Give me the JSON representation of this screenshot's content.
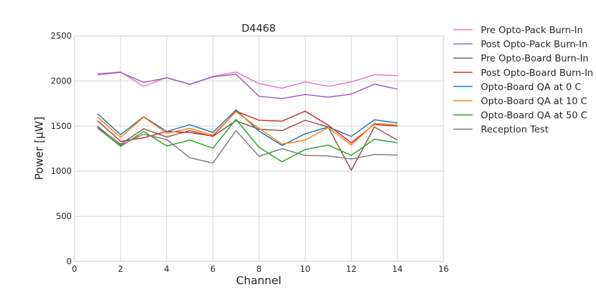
{
  "chart_data": {
    "type": "line",
    "title": "D4468",
    "xlabel": "Channel",
    "ylabel": "Power [μW]",
    "xlim": [
      0,
      16
    ],
    "ylim": [
      0,
      2500
    ],
    "xticks": [
      0,
      2,
      4,
      6,
      8,
      10,
      12,
      14,
      16
    ],
    "yticks": [
      0,
      500,
      1000,
      1500,
      2000,
      2500
    ],
    "grid": true,
    "legend_position": "outside-right",
    "x": [
      1,
      2,
      3,
      4,
      5,
      6,
      7,
      8,
      9,
      10,
      11,
      12,
      13,
      14
    ],
    "series": [
      {
        "name": "Pre Opto-Pack Burn-In",
        "color": "#e377c2",
        "values": [
          2080,
          2100,
          1940,
          2040,
          1960,
          2050,
          2100,
          1970,
          1920,
          1990,
          1940,
          1990,
          2070,
          2060
        ]
      },
      {
        "name": "Post Opto-Pack Burn-In",
        "color": "#9467bd",
        "values": [
          2070,
          2095,
          1985,
          2035,
          1965,
          2045,
          2075,
          1830,
          1805,
          1850,
          1820,
          1855,
          1965,
          1910
        ]
      },
      {
        "name": "Pre Opto-Board Burn-In",
        "color": "#8c564b",
        "values": [
          1490,
          1300,
          1470,
          1380,
          1450,
          1385,
          1560,
          1465,
          1450,
          1565,
          1490,
          1010,
          1490,
          1345
        ]
      },
      {
        "name": "Post Opto-Board Burn-In",
        "color": "#d62728",
        "values": [
          1560,
          1330,
          1370,
          1440,
          1430,
          1390,
          1665,
          1565,
          1555,
          1665,
          1510,
          1315,
          1520,
          1500
        ]
      },
      {
        "name": "Opto-Board QA at 0 C",
        "color": "#1f77b4",
        "values": [
          1635,
          1405,
          1605,
          1440,
          1515,
          1430,
          1680,
          1445,
          1285,
          1415,
          1490,
          1385,
          1570,
          1535
        ]
      },
      {
        "name": "Opto-Board QA at 10 C",
        "color": "#ff7f0e",
        "values": [
          1600,
          1375,
          1600,
          1420,
          1475,
          1400,
          1660,
          1475,
          1300,
          1345,
          1485,
          1290,
          1530,
          1510
        ]
      },
      {
        "name": "Opto-Board QA at 50 C",
        "color": "#2ca02c",
        "values": [
          1480,
          1275,
          1440,
          1280,
          1345,
          1255,
          1575,
          1265,
          1105,
          1240,
          1290,
          1175,
          1355,
          1315
        ]
      },
      {
        "name": "Reception Test",
        "color": "#7f7f7f",
        "values": [
          1500,
          1290,
          1410,
          1350,
          1150,
          1090,
          1450,
          1165,
          1250,
          1175,
          1170,
          1135,
          1185,
          1180
        ]
      }
    ]
  }
}
